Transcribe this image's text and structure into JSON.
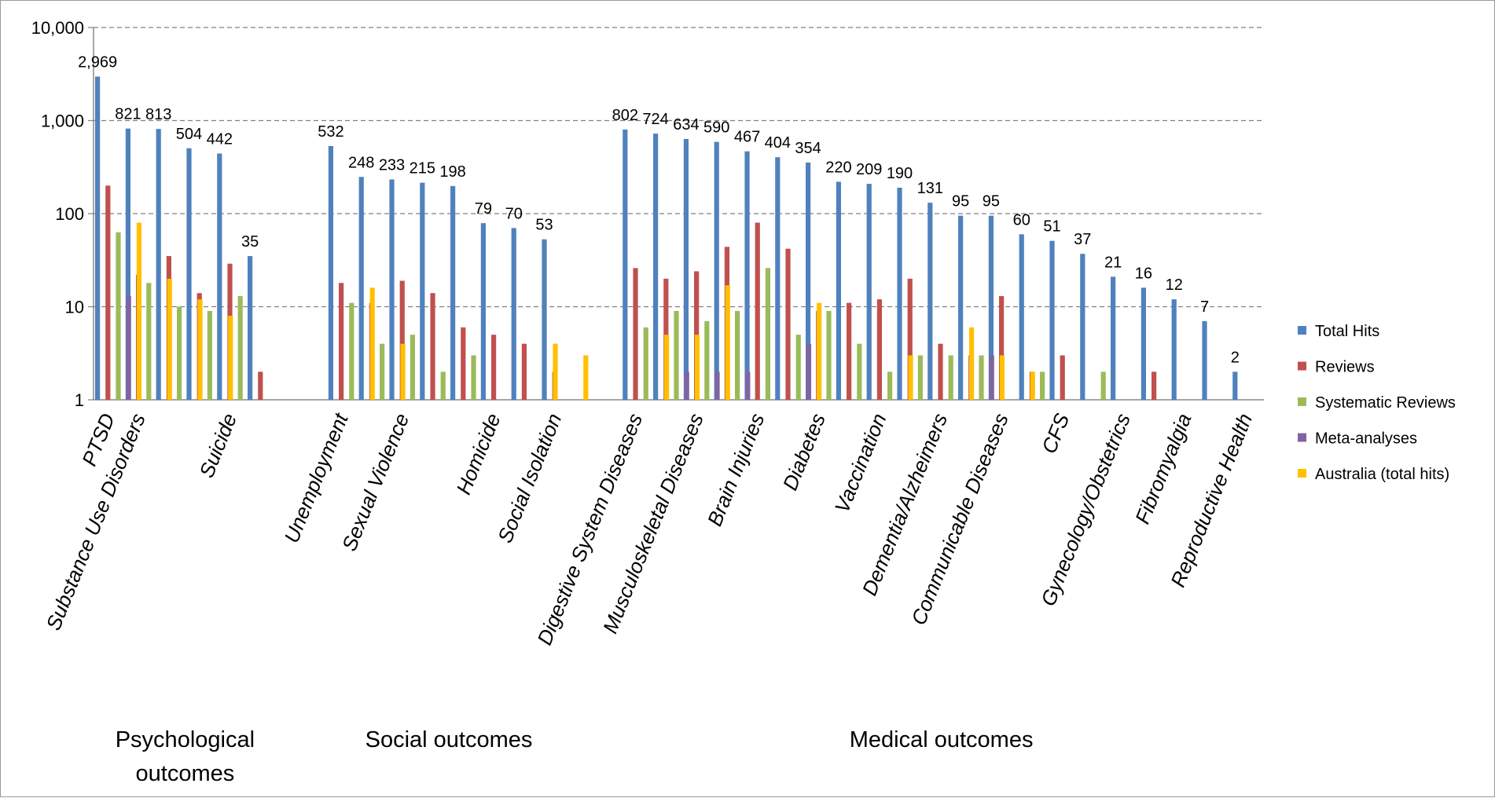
{
  "chart_data": {
    "type": "bar",
    "yscale": "log",
    "ylim": [
      1,
      10000
    ],
    "yticks": [
      "1",
      "10",
      "100",
      "1,000",
      "10,000"
    ],
    "grid": true,
    "legend_position": "right",
    "categories": [
      {
        "label": "PTSD",
        "show_label": true
      },
      {
        "label": "Substance Use Disorders",
        "show_label": true
      },
      {
        "label": "",
        "show_label": false
      },
      {
        "label": "",
        "show_label": false
      },
      {
        "label": "Suicide",
        "show_label": true
      },
      {
        "label": "",
        "show_label": false
      },
      {
        "label": "Unemployment",
        "show_label": true
      },
      {
        "label": "",
        "show_label": false
      },
      {
        "label": "Sexual Violence",
        "show_label": true
      },
      {
        "label": "",
        "show_label": false
      },
      {
        "label": "",
        "show_label": false
      },
      {
        "label": "Homicide",
        "show_label": true
      },
      {
        "label": "",
        "show_label": false
      },
      {
        "label": "Social Isolation",
        "show_label": true
      },
      {
        "label": "Digestive System Diseases",
        "show_label": true
      },
      {
        "label": "",
        "show_label": false
      },
      {
        "label": "Musculoskeletal Diseases",
        "show_label": true
      },
      {
        "label": "",
        "show_label": false
      },
      {
        "label": "Brain Injuries",
        "show_label": true
      },
      {
        "label": "",
        "show_label": false
      },
      {
        "label": "Diabetes",
        "show_label": true
      },
      {
        "label": "",
        "show_label": false
      },
      {
        "label": "Vaccination",
        "show_label": true
      },
      {
        "label": "",
        "show_label": false
      },
      {
        "label": "Dementia/Alzheimers",
        "show_label": true
      },
      {
        "label": "",
        "show_label": false
      },
      {
        "label": "Communicable Diseases",
        "show_label": true
      },
      {
        "label": "",
        "show_label": false
      },
      {
        "label": "CFS",
        "show_label": true
      },
      {
        "label": "",
        "show_label": false
      },
      {
        "label": "Gynecology/Obstetrics",
        "show_label": true
      },
      {
        "label": "",
        "show_label": false
      },
      {
        "label": "Fibromyalgia",
        "show_label": true
      },
      {
        "label": "",
        "show_label": false
      },
      {
        "label": "Reproductive Health",
        "show_label": true
      }
    ],
    "series": [
      {
        "name": "Total Hits",
        "color": "#4f81bd",
        "values": [
          2969,
          821,
          813,
          504,
          442,
          35,
          532,
          248,
          233,
          215,
          198,
          79,
          70,
          53,
          802,
          724,
          634,
          590,
          467,
          404,
          354,
          220,
          209,
          190,
          131,
          95,
          95,
          60,
          51,
          37,
          21,
          16,
          12,
          7,
          2
        ]
      },
      {
        "name": "Reviews",
        "color": "#c0504d",
        "values": [
          200,
          22,
          35,
          14,
          29,
          2,
          18,
          11,
          19,
          14,
          6,
          5,
          4,
          2,
          26,
          20,
          24,
          44,
          80,
          42,
          9,
          11,
          12,
          20,
          4,
          3,
          13,
          2,
          3,
          null,
          null,
          2,
          null,
          null,
          null
        ]
      },
      {
        "name": "Systematic Reviews",
        "color": "#9bbb59",
        "values": [
          63,
          18,
          10,
          9,
          13,
          null,
          11,
          4,
          5,
          2,
          3,
          null,
          null,
          null,
          6,
          9,
          7,
          9,
          26,
          5,
          9,
          4,
          2,
          3,
          3,
          3,
          null,
          2,
          null,
          2,
          null,
          null,
          null,
          null,
          null
        ]
      },
      {
        "name": "Meta-analyses",
        "color": "#8064a2",
        "values": [
          13,
          null,
          null,
          null,
          null,
          null,
          null,
          null,
          null,
          null,
          null,
          null,
          null,
          null,
          null,
          2,
          2,
          2,
          null,
          4,
          null,
          null,
          null,
          null,
          null,
          3,
          null,
          null,
          null,
          null,
          null,
          null,
          null,
          null,
          null
        ]
      },
      {
        "name": "Australia (total hits)",
        "color": "#ffc000",
        "values": [
          80,
          20,
          12,
          8,
          null,
          null,
          16,
          4,
          null,
          null,
          null,
          null,
          4,
          3,
          5,
          5,
          17,
          null,
          null,
          11,
          null,
          null,
          3,
          null,
          6,
          3,
          2,
          null,
          null,
          null,
          null,
          null,
          null,
          null,
          null
        ]
      }
    ],
    "data_labels": [
      "2,969",
      "821",
      "813",
      "504",
      "442",
      "35",
      "532",
      "248",
      "233",
      "215",
      "198",
      "79",
      "70",
      "53",
      "802",
      "724",
      "634",
      "590",
      "467",
      "404",
      "354",
      "220",
      "209",
      "190",
      "131",
      "95",
      "95",
      "60",
      "51",
      "37",
      "21",
      "16",
      "12",
      "7",
      "2"
    ],
    "groups": [
      {
        "label_lines": [
          "Psychological",
          "outcomes"
        ],
        "from": 0,
        "to": 5
      },
      {
        "label_lines": [
          "Social outcomes"
        ],
        "from": 6,
        "to": 13
      },
      {
        "label_lines": [
          "Medical outcomes"
        ],
        "from": 14,
        "to": 34
      }
    ]
  }
}
